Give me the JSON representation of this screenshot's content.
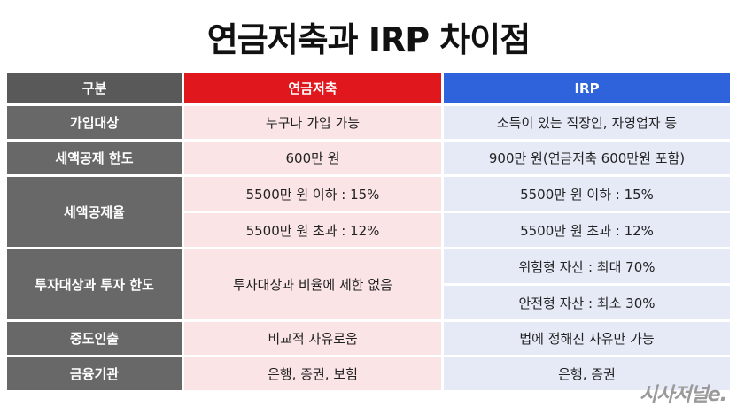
{
  "title": "연금저축과 IRP 차이점",
  "headers": {
    "label": "구분",
    "pension": "연금저축",
    "irp": "IRP"
  },
  "rows": {
    "join": {
      "label": "가입대상",
      "pension": "누구나 가입 가능",
      "irp": "소득이 있는 직장인, 자영업자 등"
    },
    "limit": {
      "label": "세액공제 한도",
      "pension": "600만 원",
      "irp": "900만 원(연금저축 600만원 포함)"
    },
    "rate": {
      "label": "세액공제율",
      "pension_1": "5500만 원 이하 : 15%",
      "pension_2": "5500만 원 초과 : 12%",
      "irp_1": "5500만 원 이하 : 15%",
      "irp_2": "5500만 원 초과 : 12%"
    },
    "invest": {
      "label": "투자대상과 투자 한도",
      "pension": "투자대상과 비율에 제한 없음",
      "irp_1": "위험형 자산 : 최대 70%",
      "irp_2": "안전형 자산 : 최소 30%"
    },
    "withdraw": {
      "label": "중도인출",
      "pension": "비교적 자유로움",
      "irp": "법에 정해진 사유만 가능"
    },
    "institution": {
      "label": "금융기관",
      "pension": "은행, 증권, 보험",
      "irp": "은행, 증권"
    }
  },
  "watermark": "시사저널e.",
  "colors": {
    "header_label": "#595959",
    "header_pension": "#e0171c",
    "header_irp": "#2f63dc",
    "label_bg": "#686868",
    "pension_bg": "#fbe4e6",
    "irp_bg": "#e6eaf7"
  }
}
